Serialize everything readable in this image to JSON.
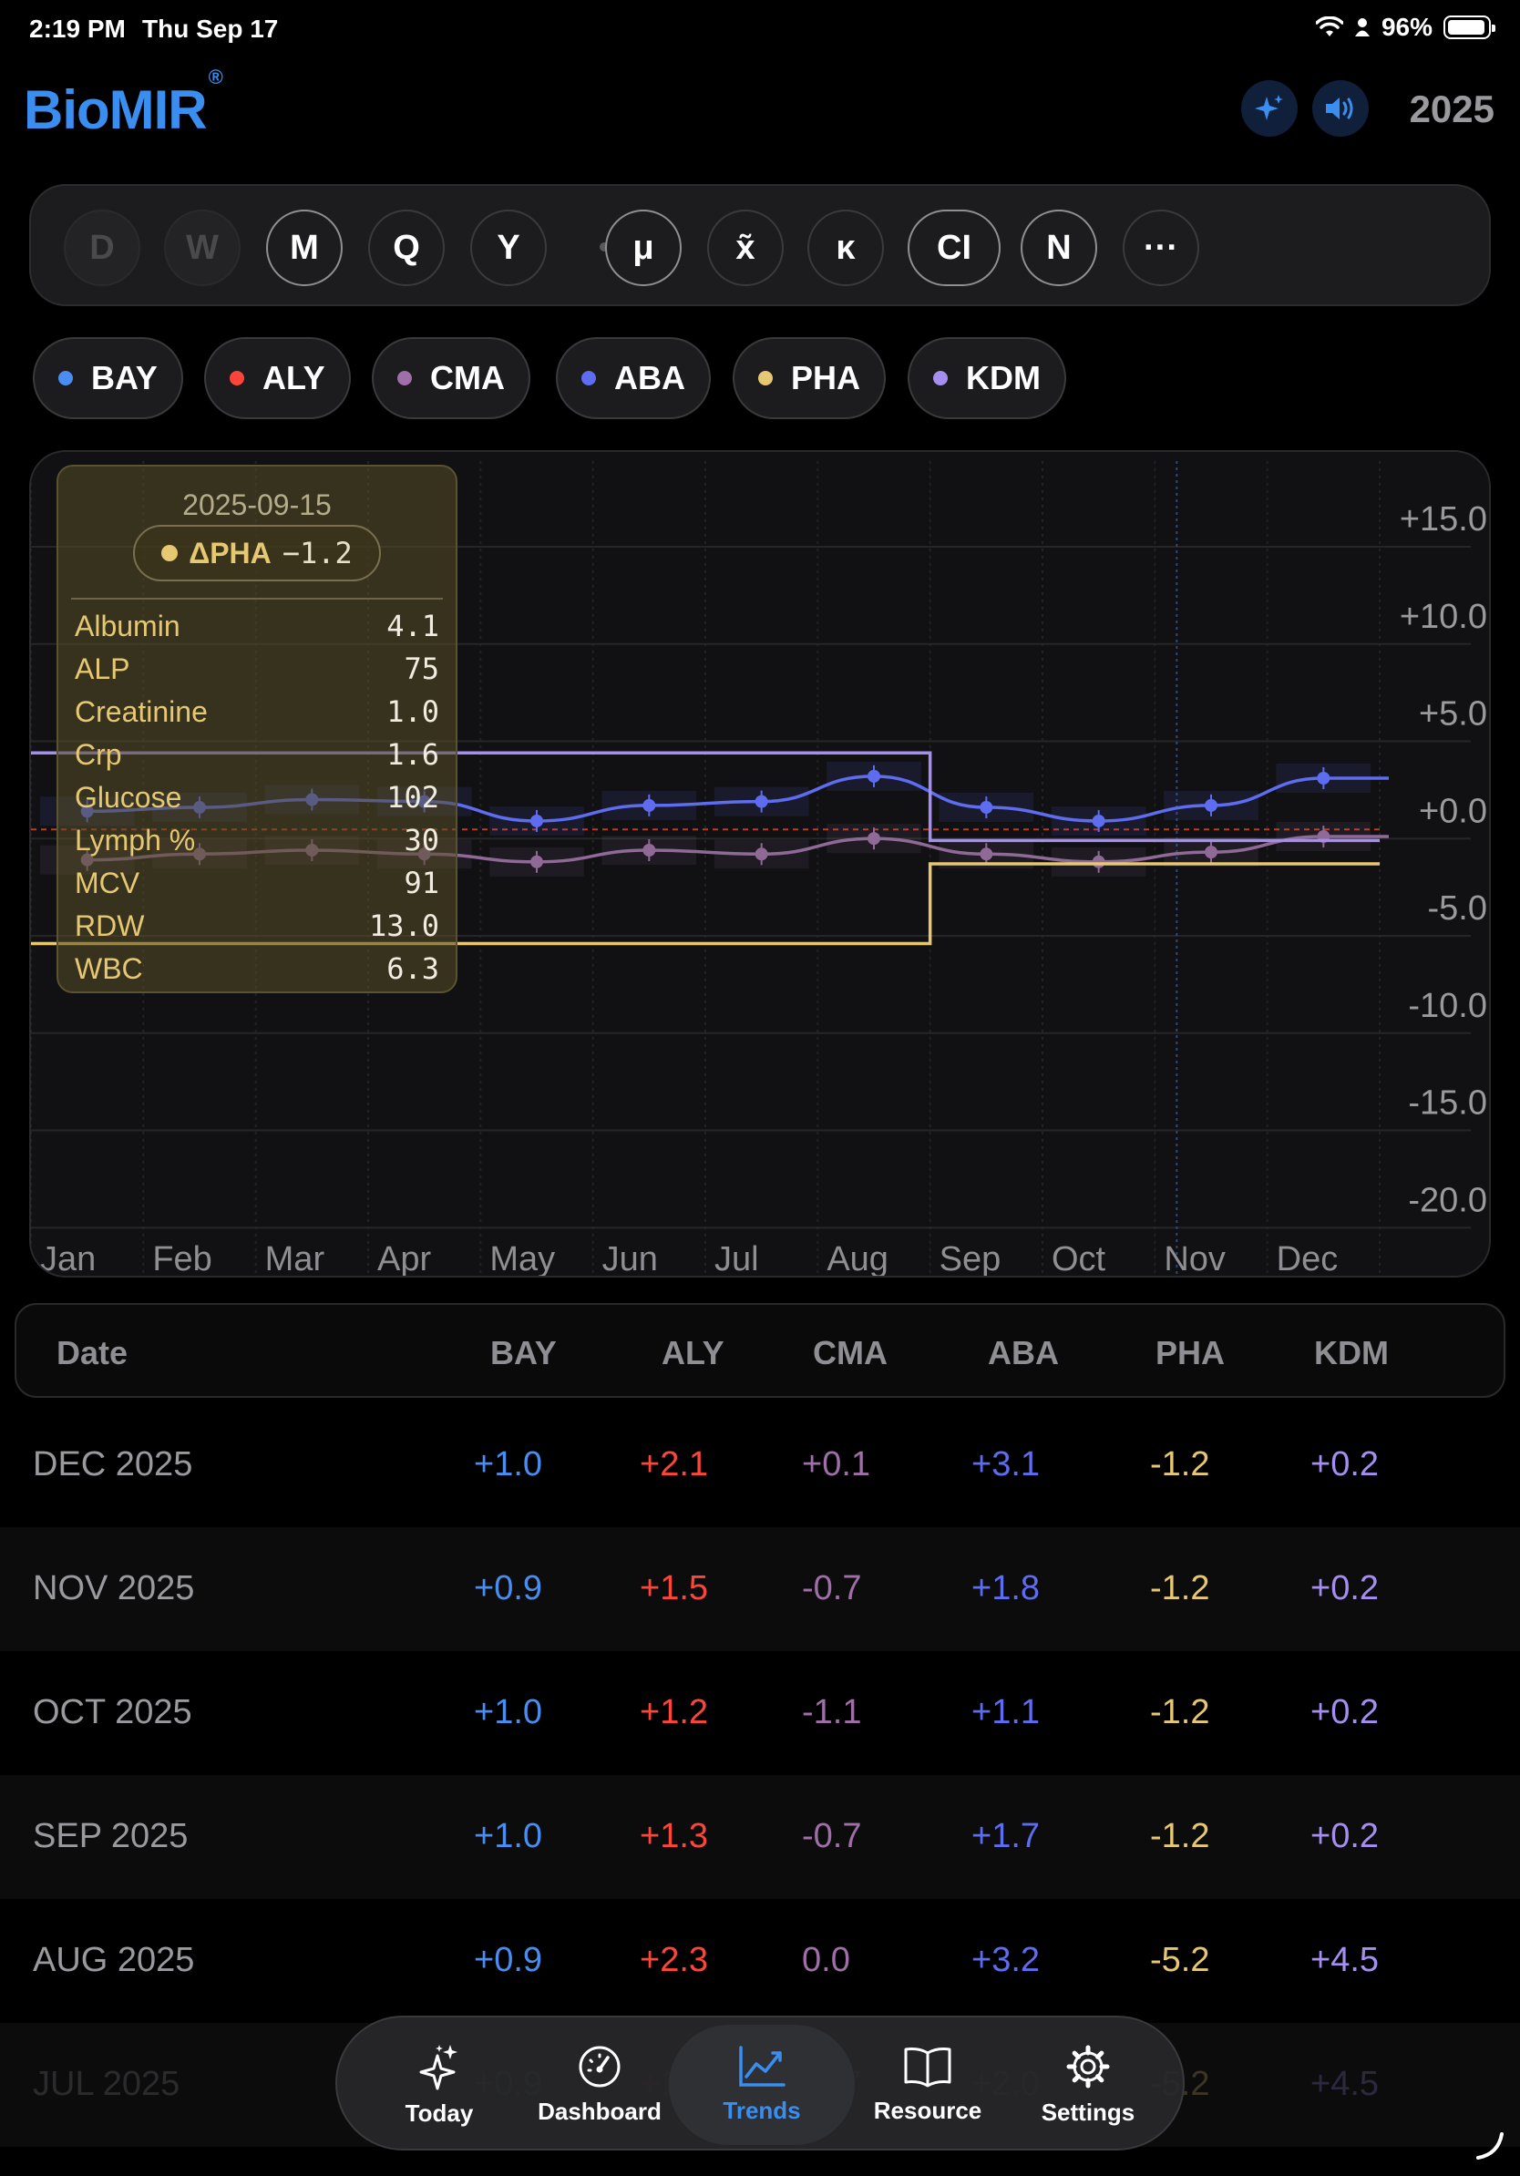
{
  "status_bar": {
    "time": "2:19 PM",
    "date": "Thu Sep 17",
    "battery": "96%",
    "battery_level": 0.96
  },
  "header": {
    "logo": "BioMIR",
    "registered": "®",
    "year": "2025",
    "sparkle_icon": "sparkle-icon",
    "speaker_icon": "speaker-icon"
  },
  "period_buttons": [
    {
      "label": "D",
      "state": "disabled"
    },
    {
      "label": "W",
      "state": "disabled"
    },
    {
      "label": "M",
      "state": "selected"
    },
    {
      "label": "Q",
      "state": "normal"
    },
    {
      "label": "Y",
      "state": "normal"
    },
    {
      "label": "μ",
      "state": "selected"
    },
    {
      "label": "x̃",
      "state": "normal"
    },
    {
      "label": "κ",
      "state": "normal"
    },
    {
      "label": "CI",
      "state": "selected"
    },
    {
      "label": "N",
      "state": "selected"
    },
    {
      "label": "···",
      "state": "normal"
    }
  ],
  "series_chips": [
    {
      "label": "BAY",
      "color": "#4a8df0"
    },
    {
      "label": "ALY",
      "color": "#ff453a"
    },
    {
      "label": "CMA",
      "color": "#a06ea8"
    },
    {
      "label": "ABA",
      "color": "#5e6cf0"
    },
    {
      "label": "PHA",
      "color": "#e6c873"
    },
    {
      "label": "KDM",
      "color": "#a58ef0"
    }
  ],
  "tooltip": {
    "date": "2025-09-15",
    "series": "ΔPHA",
    "value": "−1.2",
    "rows": [
      {
        "k": "Albumin",
        "v": "4.1"
      },
      {
        "k": "ALP",
        "v": "75"
      },
      {
        "k": "Creatinine",
        "v": "1.0"
      },
      {
        "k": "Crp",
        "v": "1.6"
      },
      {
        "k": "Glucose",
        "v": "102"
      },
      {
        "k": "Lymph %",
        "v": "30"
      },
      {
        "k": "MCV",
        "v": "91"
      },
      {
        "k": "RDW",
        "v": "13.0"
      },
      {
        "k": "WBC",
        "v": "6.3"
      }
    ]
  },
  "chart_data": {
    "type": "line",
    "x": [
      "Jan",
      "Feb",
      "Mar",
      "Apr",
      "May",
      "Jun",
      "Jul",
      "Aug",
      "Sep",
      "Oct",
      "Nov",
      "Dec"
    ],
    "y_ticks": [
      "+15.0",
      "+10.0",
      "+5.0",
      "+0.0",
      "-5.0",
      "-10.0",
      "-15.0",
      "-20.0"
    ],
    "ylim": [
      -22,
      18
    ],
    "series": [
      {
        "name": "ABA",
        "color": "#5e6cf0",
        "values": [
          0.0,
          0.2,
          0.6,
          0.5,
          -0.5,
          0.3,
          0.5,
          1.8,
          0.2,
          -0.5,
          0.3,
          1.7
        ]
      },
      {
        "name": "CMA",
        "color": "#8f6a97",
        "values": [
          -2.5,
          -2.2,
          -2.0,
          -2.2,
          -2.6,
          -2.0,
          -2.2,
          -1.4,
          -2.2,
          -2.6,
          -2.1,
          -1.3
        ]
      },
      {
        "name": "KDM",
        "color": "#a58ef0",
        "step": true,
        "values": [
          3.0,
          3.0,
          3.0,
          3.0,
          3.0,
          3.0,
          3.0,
          3.0,
          -1.5,
          -1.5,
          -1.5,
          -1.5
        ]
      },
      {
        "name": "PHA",
        "color": "#e6c873",
        "step": true,
        "values": [
          -6.8,
          -6.8,
          -6.8,
          -6.8,
          -6.8,
          -6.8,
          -6.8,
          -6.8,
          -2.7,
          -2.7,
          -2.7,
          -2.7
        ]
      }
    ],
    "baseline_color": "#c0392b"
  },
  "table": {
    "headers": [
      "Date",
      "BAY",
      "ALY",
      "CMA",
      "ABA",
      "PHA",
      "KDM"
    ],
    "rows": [
      {
        "date": "DEC 2025",
        "vals": [
          "+1.0",
          "+2.1",
          "+0.1",
          "+3.1",
          "-1.2",
          "+0.2"
        ]
      },
      {
        "date": "NOV 2025",
        "vals": [
          "+0.9",
          "+1.5",
          "-0.7",
          "+1.8",
          "-1.2",
          "+0.2"
        ]
      },
      {
        "date": "OCT 2025",
        "vals": [
          "+1.0",
          "+1.2",
          "-1.1",
          "+1.1",
          "-1.2",
          "+0.2"
        ]
      },
      {
        "date": "SEP 2025",
        "vals": [
          "+1.0",
          "+1.3",
          "-0.7",
          "+1.7",
          "-1.2",
          "+0.2"
        ]
      },
      {
        "date": "AUG 2025",
        "vals": [
          "+0.9",
          "+2.3",
          "0.0",
          "+3.2",
          "-5.2",
          "+4.5"
        ]
      },
      {
        "date": "JUL 2025",
        "vals": [
          "+0.9",
          "+1.8",
          "-0.7",
          "+2.0",
          "-5.2",
          "+4.5"
        ]
      }
    ],
    "col_colors": [
      "#4a8df0",
      "#ff453a",
      "#a06ea8",
      "#5e6cf0",
      "#e6c873",
      "#a58ef0"
    ]
  },
  "tabs": [
    {
      "label": "Today",
      "icon": "sparkles-icon",
      "active": false
    },
    {
      "label": "Dashboard",
      "icon": "gauge-icon",
      "active": false
    },
    {
      "label": "Trends",
      "icon": "chart-line-icon",
      "active": true
    },
    {
      "label": "Resource",
      "icon": "book-icon",
      "active": false
    },
    {
      "label": "Settings",
      "icon": "gear-icon",
      "active": false
    }
  ]
}
